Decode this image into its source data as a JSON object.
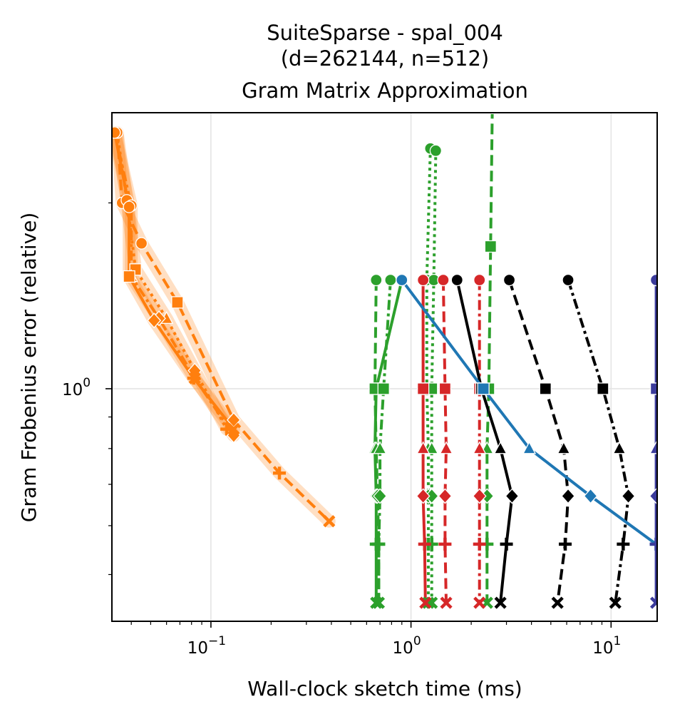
{
  "chart_data": {
    "type": "line",
    "title_lines": [
      "SuiteSparse - spal_004",
      "(d=262144, n=512)",
      "Gram Matrix Approximation"
    ],
    "xlabel": "Wall-clock sketch time (ms)",
    "ylabel": "Gram Frobenius error (relative)",
    "xscale": "log",
    "yscale": "log",
    "xlim": [
      0.032,
      17.0
    ],
    "ylim": [
      0.42,
      2.8
    ],
    "xticks": [
      {
        "value": 0.1,
        "base": "10",
        "exp": "−1"
      },
      {
        "value": 1,
        "base": "10",
        "exp": "0"
      },
      {
        "value": 10,
        "base": "10",
        "exp": "1"
      }
    ],
    "yticks": [
      {
        "value": 1,
        "base": "10",
        "exp": "0"
      }
    ],
    "grid": true,
    "colors": {
      "orange": "#ff7f0e",
      "green": "#2ca02c",
      "red": "#d62728",
      "black": "#000000",
      "blue": "#1f77b4",
      "indigo": "#3b3b9b"
    },
    "series": [
      {
        "color": "#ff7f0e",
        "dash": "15,7",
        "width": 4,
        "band": true,
        "points": [
          {
            "x": 0.034,
            "y": 2.6,
            "m": "circle"
          },
          {
            "x": 0.036,
            "y": 2.0,
            "m": "circle"
          },
          {
            "x": 0.045,
            "y": 1.72,
            "m": "circle"
          },
          {
            "x": 0.068,
            "y": 1.38,
            "m": "square"
          },
          {
            "x": 0.13,
            "y": 0.89,
            "m": "diamond"
          },
          {
            "x": 0.22,
            "y": 0.73,
            "m": "plus"
          },
          {
            "x": 0.39,
            "y": 0.61,
            "m": "x"
          }
        ]
      },
      {
        "color": "#ff7f0e",
        "dash": "4,5",
        "width": 4,
        "band": true,
        "points": [
          {
            "x": 0.034,
            "y": 2.6,
            "m": "circle"
          },
          {
            "x": 0.038,
            "y": 2.02,
            "m": "circle"
          },
          {
            "x": 0.042,
            "y": 1.56,
            "m": "square"
          },
          {
            "x": 0.06,
            "y": 1.3,
            "m": "triangle"
          },
          {
            "x": 0.083,
            "y": 1.07,
            "m": "diamond"
          },
          {
            "x": 0.12,
            "y": 0.86,
            "m": "plus"
          }
        ]
      },
      {
        "color": "#ff7f0e",
        "dash": "14,5,4,5",
        "width": 4,
        "band": true,
        "points": [
          {
            "x": 0.033,
            "y": 2.6,
            "m": "circle"
          },
          {
            "x": 0.04,
            "y": 1.98,
            "m": "circle"
          },
          {
            "x": 0.04,
            "y": 1.52,
            "m": "triangle"
          },
          {
            "x": 0.055,
            "y": 1.3,
            "m": "diamond"
          },
          {
            "x": 0.083,
            "y": 1.04,
            "m": "x"
          },
          {
            "x": 0.13,
            "y": 0.84,
            "m": "diamond"
          }
        ]
      },
      {
        "color": "#ff7f0e",
        "dash": "",
        "width": 4,
        "band": true,
        "points": [
          {
            "x": 0.033,
            "y": 2.6,
            "m": "circle"
          },
          {
            "x": 0.039,
            "y": 1.97,
            "m": "circle"
          },
          {
            "x": 0.039,
            "y": 1.52,
            "m": "square"
          },
          {
            "x": 0.052,
            "y": 1.29,
            "m": "diamond"
          },
          {
            "x": 0.082,
            "y": 1.04,
            "m": "plus"
          },
          {
            "x": 0.13,
            "y": 0.86,
            "m": "x"
          }
        ]
      },
      {
        "color": "#2ca02c",
        "dash": "",
        "width": 4,
        "band": false,
        "points": [
          {
            "x": 0.9,
            "y": 1.5,
            "m": "circle"
          },
          {
            "x": 0.67,
            "y": 1.0,
            "m": "square"
          },
          {
            "x": 0.66,
            "y": 0.8,
            "m": "triangle"
          },
          {
            "x": 0.67,
            "y": 0.67,
            "m": "diamond"
          },
          {
            "x": 0.67,
            "y": 0.56,
            "m": "plus"
          },
          {
            "x": 0.67,
            "y": 0.45,
            "m": "x"
          }
        ]
      },
      {
        "color": "#2ca02c",
        "dash": "15,7",
        "width": 4,
        "band": false,
        "points": [
          {
            "x": 0.67,
            "y": 1.5,
            "m": "circle"
          },
          {
            "x": 0.66,
            "y": 1.0,
            "m": "square"
          },
          {
            "x": 0.67,
            "y": 0.8,
            "m": "triangle"
          },
          {
            "x": 0.68,
            "y": 0.67,
            "m": "diamond"
          },
          {
            "x": 0.69,
            "y": 0.56,
            "m": "plus"
          },
          {
            "x": 0.69,
            "y": 0.45,
            "m": "x"
          }
        ]
      },
      {
        "color": "#2ca02c",
        "dash": "14,5,4,5",
        "width": 4,
        "band": false,
        "points": [
          {
            "x": 0.79,
            "y": 1.5,
            "m": "circle"
          },
          {
            "x": 0.73,
            "y": 1.0,
            "m": "square"
          },
          {
            "x": 0.7,
            "y": 0.8,
            "m": "triangle"
          },
          {
            "x": 0.7,
            "y": 0.67,
            "m": "diamond"
          },
          {
            "x": 0.69,
            "y": 0.56,
            "m": "plus"
          },
          {
            "x": 0.69,
            "y": 0.45,
            "m": "x"
          }
        ]
      },
      {
        "color": "#2ca02c",
        "dash": "4,5",
        "width": 4,
        "band": false,
        "points": [
          {
            "x": 1.25,
            "y": 2.45,
            "m": "circle"
          },
          {
            "x": 1.2,
            "y": 1.5,
            "m": "circle"
          },
          {
            "x": 1.2,
            "y": 1.0,
            "m": "square"
          },
          {
            "x": 1.22,
            "y": 0.8,
            "m": "triangle"
          },
          {
            "x": 1.22,
            "y": 0.67,
            "m": "diamond"
          },
          {
            "x": 1.22,
            "y": 0.56,
            "m": "plus"
          },
          {
            "x": 1.22,
            "y": 0.45,
            "m": "x"
          }
        ]
      },
      {
        "color": "#2ca02c",
        "dash": "4,5",
        "width": 4,
        "band": false,
        "points": [
          {
            "x": 1.33,
            "y": 2.43,
            "m": "circle"
          },
          {
            "x": 1.3,
            "y": 1.5,
            "m": "circle"
          },
          {
            "x": 1.27,
            "y": 1.0,
            "m": "square"
          },
          {
            "x": 1.27,
            "y": 0.8,
            "m": "triangle"
          },
          {
            "x": 1.27,
            "y": 0.67,
            "m": "diamond"
          },
          {
            "x": 1.27,
            "y": 0.56,
            "m": "plus"
          },
          {
            "x": 1.27,
            "y": 0.45,
            "m": "x"
          }
        ]
      },
      {
        "color": "#2ca02c",
        "dash": "15,7",
        "width": 4,
        "band": false,
        "points": [
          {
            "x": 2.55,
            "y": 2.85,
            "m": "circle"
          },
          {
            "x": 2.5,
            "y": 1.7,
            "m": "square"
          },
          {
            "x": 2.45,
            "y": 1.0,
            "m": "square"
          },
          {
            "x": 2.4,
            "y": 0.8,
            "m": "triangle"
          },
          {
            "x": 2.4,
            "y": 0.67,
            "m": "diamond"
          },
          {
            "x": 2.4,
            "y": 0.56,
            "m": "plus"
          },
          {
            "x": 2.4,
            "y": 0.45,
            "m": "x"
          }
        ]
      },
      {
        "color": "#d62728",
        "dash": "",
        "width": 4,
        "band": false,
        "points": [
          {
            "x": 1.15,
            "y": 1.5,
            "m": "circle"
          },
          {
            "x": 1.15,
            "y": 1.0,
            "m": "square"
          },
          {
            "x": 1.15,
            "y": 0.8,
            "m": "triangle"
          },
          {
            "x": 1.15,
            "y": 0.67,
            "m": "diamond"
          },
          {
            "x": 1.17,
            "y": 0.56,
            "m": "plus"
          },
          {
            "x": 1.18,
            "y": 0.45,
            "m": "x"
          }
        ]
      },
      {
        "color": "#d62728",
        "dash": "15,7",
        "width": 4,
        "band": false,
        "points": [
          {
            "x": 1.45,
            "y": 1.5,
            "m": "circle"
          },
          {
            "x": 1.48,
            "y": 1.0,
            "m": "square"
          },
          {
            "x": 1.5,
            "y": 0.8,
            "m": "triangle"
          },
          {
            "x": 1.48,
            "y": 0.67,
            "m": "diamond"
          },
          {
            "x": 1.48,
            "y": 0.56,
            "m": "plus"
          },
          {
            "x": 1.5,
            "y": 0.45,
            "m": "x"
          }
        ]
      },
      {
        "color": "#d62728",
        "dash": "14,5,4,5",
        "width": 4,
        "band": false,
        "points": [
          {
            "x": 2.2,
            "y": 1.5,
            "m": "circle"
          },
          {
            "x": 2.2,
            "y": 1.0,
            "m": "square"
          },
          {
            "x": 2.2,
            "y": 0.8,
            "m": "triangle"
          },
          {
            "x": 2.2,
            "y": 0.67,
            "m": "diamond"
          },
          {
            "x": 2.2,
            "y": 0.56,
            "m": "plus"
          },
          {
            "x": 2.2,
            "y": 0.45,
            "m": "x"
          }
        ]
      },
      {
        "color": "#000000",
        "dash": "",
        "width": 4,
        "band": false,
        "points": [
          {
            "x": 1.7,
            "y": 1.5,
            "m": "circle"
          },
          {
            "x": 2.25,
            "y": 1.0,
            "m": "square"
          },
          {
            "x": 2.8,
            "y": 0.8,
            "m": "triangle"
          },
          {
            "x": 3.2,
            "y": 0.67,
            "m": "diamond"
          },
          {
            "x": 3.0,
            "y": 0.56,
            "m": "plus"
          },
          {
            "x": 2.8,
            "y": 0.45,
            "m": "x"
          }
        ]
      },
      {
        "color": "#000000",
        "dash": "15,7",
        "width": 4,
        "band": false,
        "points": [
          {
            "x": 3.1,
            "y": 1.5,
            "m": "circle"
          },
          {
            "x": 4.7,
            "y": 1.0,
            "m": "square"
          },
          {
            "x": 5.8,
            "y": 0.8,
            "m": "triangle"
          },
          {
            "x": 6.1,
            "y": 0.67,
            "m": "diamond"
          },
          {
            "x": 5.9,
            "y": 0.56,
            "m": "plus"
          },
          {
            "x": 5.4,
            "y": 0.45,
            "m": "x"
          }
        ]
      },
      {
        "color": "#000000",
        "dash": "14,5,4,5",
        "width": 4,
        "band": false,
        "points": [
          {
            "x": 6.1,
            "y": 1.5,
            "m": "circle"
          },
          {
            "x": 9.1,
            "y": 1.0,
            "m": "square"
          },
          {
            "x": 11.0,
            "y": 0.8,
            "m": "triangle"
          },
          {
            "x": 12.2,
            "y": 0.67,
            "m": "diamond"
          },
          {
            "x": 11.5,
            "y": 0.56,
            "m": "plus"
          },
          {
            "x": 10.5,
            "y": 0.45,
            "m": "x"
          }
        ]
      },
      {
        "color": "#1f77b4",
        "dash": "",
        "width": 4,
        "band": false,
        "points": [
          {
            "x": 0.9,
            "y": 1.5,
            "m": "circle"
          },
          {
            "x": 2.3,
            "y": 1.0,
            "m": "square"
          },
          {
            "x": 3.9,
            "y": 0.8,
            "m": "triangle"
          },
          {
            "x": 7.9,
            "y": 0.67,
            "m": "diamond"
          },
          {
            "x": 16.8,
            "y": 0.56,
            "m": "plus"
          }
        ]
      },
      {
        "color": "#3b3b9b",
        "dash": "",
        "width": 4,
        "band": false,
        "points": [
          {
            "x": 16.8,
            "y": 1.5,
            "m": "circle"
          },
          {
            "x": 16.8,
            "y": 1.0,
            "m": "square"
          },
          {
            "x": 16.8,
            "y": 0.8,
            "m": "triangle"
          },
          {
            "x": 16.8,
            "y": 0.67,
            "m": "diamond"
          },
          {
            "x": 16.8,
            "y": 0.56,
            "m": "plus"
          },
          {
            "x": 16.8,
            "y": 0.45,
            "m": "x"
          }
        ]
      }
    ]
  }
}
